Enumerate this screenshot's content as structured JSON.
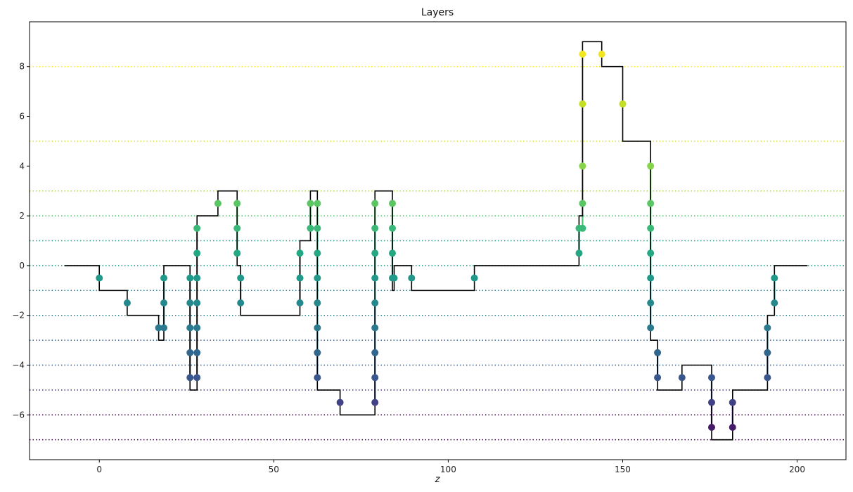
{
  "chart_data": {
    "type": "line",
    "title": "Layers",
    "xlabel": "z",
    "ylabel": "",
    "xlim": [
      -20,
      214
    ],
    "ylim": [
      -7.8,
      9.8
    ],
    "xticks": [
      0,
      50,
      100,
      150,
      200
    ],
    "yticks": [
      -6,
      -4,
      -2,
      0,
      2,
      4,
      6,
      8
    ],
    "grid": false,
    "legend": "none",
    "profile": {
      "color": "#000000",
      "points": [
        [
          -10,
          0
        ],
        [
          0,
          0
        ],
        [
          0,
          -1
        ],
        [
          8,
          -1
        ],
        [
          8,
          -2
        ],
        [
          17,
          -2
        ],
        [
          17,
          -3
        ],
        [
          18.5,
          -3
        ],
        [
          18.5,
          0
        ],
        [
          26,
          0
        ],
        [
          26,
          -5
        ],
        [
          28,
          -5
        ],
        [
          28,
          2
        ],
        [
          34,
          2
        ],
        [
          34,
          3
        ],
        [
          39.5,
          3
        ],
        [
          39.5,
          0
        ],
        [
          40.5,
          0
        ],
        [
          40.5,
          -2
        ],
        [
          57.5,
          -2
        ],
        [
          57.5,
          1
        ],
        [
          60.5,
          1
        ],
        [
          60.5,
          3
        ],
        [
          62.5,
          3
        ],
        [
          62.5,
          -5
        ],
        [
          69,
          -5
        ],
        [
          69,
          -6
        ],
        [
          79,
          -6
        ],
        [
          79,
          3
        ],
        [
          84,
          3
        ],
        [
          84,
          -1
        ],
        [
          84.5,
          -1
        ],
        [
          84.5,
          0
        ],
        [
          89.5,
          0
        ],
        [
          89.5,
          -1
        ],
        [
          107.5,
          -1
        ],
        [
          107.5,
          0
        ],
        [
          137.5,
          0
        ],
        [
          137.5,
          2
        ],
        [
          138.5,
          2
        ],
        [
          138.5,
          9
        ],
        [
          144,
          9
        ],
        [
          144,
          8
        ],
        [
          150,
          8
        ],
        [
          150,
          5
        ],
        [
          158,
          5
        ],
        [
          158,
          -3
        ],
        [
          160,
          -3
        ],
        [
          160,
          -5
        ],
        [
          167,
          -5
        ],
        [
          167,
          -4
        ],
        [
          175.5,
          -4
        ],
        [
          175.5,
          -7
        ],
        [
          181.5,
          -7
        ],
        [
          181.5,
          -5
        ],
        [
          191.5,
          -5
        ],
        [
          191.5,
          -2
        ],
        [
          193.5,
          -2
        ],
        [
          193.5,
          0
        ],
        [
          203,
          0
        ]
      ]
    },
    "layer_levels": [
      {
        "y": 8,
        "color": "#fde725"
      },
      {
        "y": 5,
        "color": "#d0e11c"
      },
      {
        "y": 3,
        "color": "#a0da39"
      },
      {
        "y": 2,
        "color": "#4ac16d"
      },
      {
        "y": 1,
        "color": "#1fa187"
      },
      {
        "y": 0,
        "color": "#1fa187"
      },
      {
        "y": -1,
        "color": "#277f8e"
      },
      {
        "y": -2,
        "color": "#277f8e"
      },
      {
        "y": -3,
        "color": "#365c8d"
      },
      {
        "y": -4,
        "color": "#365c8d"
      },
      {
        "y": -5,
        "color": "#46327e"
      },
      {
        "y": -6,
        "color": "#440154"
      },
      {
        "y": -7,
        "color": "#440154"
      }
    ],
    "crossings": [
      {
        "x": 0,
        "ys": [
          -0.5
        ]
      },
      {
        "x": 8,
        "ys": [
          -1.5
        ]
      },
      {
        "x": 17,
        "ys": [
          -2.5
        ]
      },
      {
        "x": 18.5,
        "ys": [
          -2.5,
          -1.5,
          -0.5
        ]
      },
      {
        "x": 26,
        "ys": [
          -0.5,
          -1.5,
          -2.5,
          -3.5,
          -4.5
        ]
      },
      {
        "x": 28,
        "ys": [
          -4.5,
          -3.5,
          -2.5,
          -1.5,
          -0.5,
          0.5,
          1.5
        ]
      },
      {
        "x": 34,
        "ys": [
          2.5
        ]
      },
      {
        "x": 39.5,
        "ys": [
          2.5,
          1.5,
          0.5
        ]
      },
      {
        "x": 40.5,
        "ys": [
          -0.5,
          -1.5
        ]
      },
      {
        "x": 57.5,
        "ys": [
          -1.5,
          -0.5,
          0.5
        ]
      },
      {
        "x": 60.5,
        "ys": [
          1.5,
          2.5
        ]
      },
      {
        "x": 62.5,
        "ys": [
          2.5,
          1.5,
          0.5,
          -0.5,
          -1.5,
          -2.5,
          -3.5,
          -4.5
        ]
      },
      {
        "x": 69,
        "ys": [
          -5.5
        ]
      },
      {
        "x": 79,
        "ys": [
          -5.5,
          -4.5,
          -3.5,
          -2.5,
          -1.5,
          -0.5,
          0.5,
          1.5,
          2.5
        ]
      },
      {
        "x": 84,
        "ys": [
          2.5,
          1.5,
          0.5,
          -0.5
        ]
      },
      {
        "x": 84.5,
        "ys": [
          -0.5
        ]
      },
      {
        "x": 89.5,
        "ys": [
          -0.5
        ]
      },
      {
        "x": 107.5,
        "ys": [
          -0.5
        ]
      },
      {
        "x": 137.5,
        "ys": [
          0.5,
          1.5
        ]
      },
      {
        "x": 138.5,
        "ys": [
          1.5,
          2.5,
          4,
          6.5,
          8.5
        ]
      },
      {
        "x": 144,
        "ys": [
          8.5
        ]
      },
      {
        "x": 150,
        "ys": [
          6.5
        ]
      },
      {
        "x": 158,
        "ys": [
          4,
          2.5,
          1.5,
          0.5,
          -0.5,
          -1.5,
          -2.5
        ]
      },
      {
        "x": 160,
        "ys": [
          -3.5,
          -4.5
        ]
      },
      {
        "x": 167,
        "ys": [
          -4.5
        ]
      },
      {
        "x": 175.5,
        "ys": [
          -4.5,
          -5.5,
          -6.5
        ]
      },
      {
        "x": 181.5,
        "ys": [
          -6.5,
          -5.5
        ]
      },
      {
        "x": 191.5,
        "ys": [
          -4.5,
          -3.5,
          -2.5
        ]
      },
      {
        "x": 193.5,
        "ys": [
          -1.5,
          -0.5
        ]
      }
    ],
    "colorscale": [
      {
        "y": -7,
        "color": "#440154"
      },
      {
        "y": -6,
        "color": "#46327e"
      },
      {
        "y": -5,
        "color": "#3b528b"
      },
      {
        "y": -4,
        "color": "#365c8d"
      },
      {
        "y": -3,
        "color": "#2c728e"
      },
      {
        "y": -2,
        "color": "#277f8e"
      },
      {
        "y": -1,
        "color": "#21918c"
      },
      {
        "y": 0,
        "color": "#1fa187"
      },
      {
        "y": 1,
        "color": "#28ae80"
      },
      {
        "y": 2,
        "color": "#4ac16d"
      },
      {
        "y": 3,
        "color": "#6ccd5a"
      },
      {
        "y": 5,
        "color": "#a0da39"
      },
      {
        "y": 7,
        "color": "#d0e11c"
      },
      {
        "y": 9,
        "color": "#fde725"
      }
    ]
  }
}
